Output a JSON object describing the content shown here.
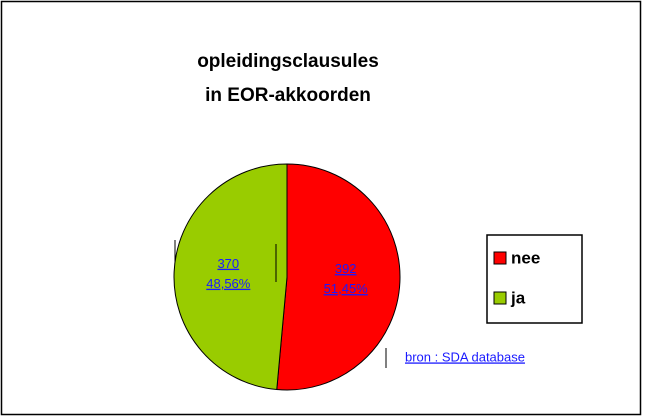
{
  "chart_data": {
    "type": "pie",
    "title": [
      "opleidingsclausules",
      "in EOR-akkoorden"
    ],
    "categories": [
      "nee",
      "ja"
    ],
    "values": [
      392,
      370
    ],
    "percentages": [
      51.45,
      48.56
    ],
    "percentage_labels": [
      "51,45%",
      "48,56%"
    ],
    "colors": [
      "#ff0000",
      "#99cc00"
    ],
    "legend": "right",
    "source": "bron : SDA database"
  }
}
